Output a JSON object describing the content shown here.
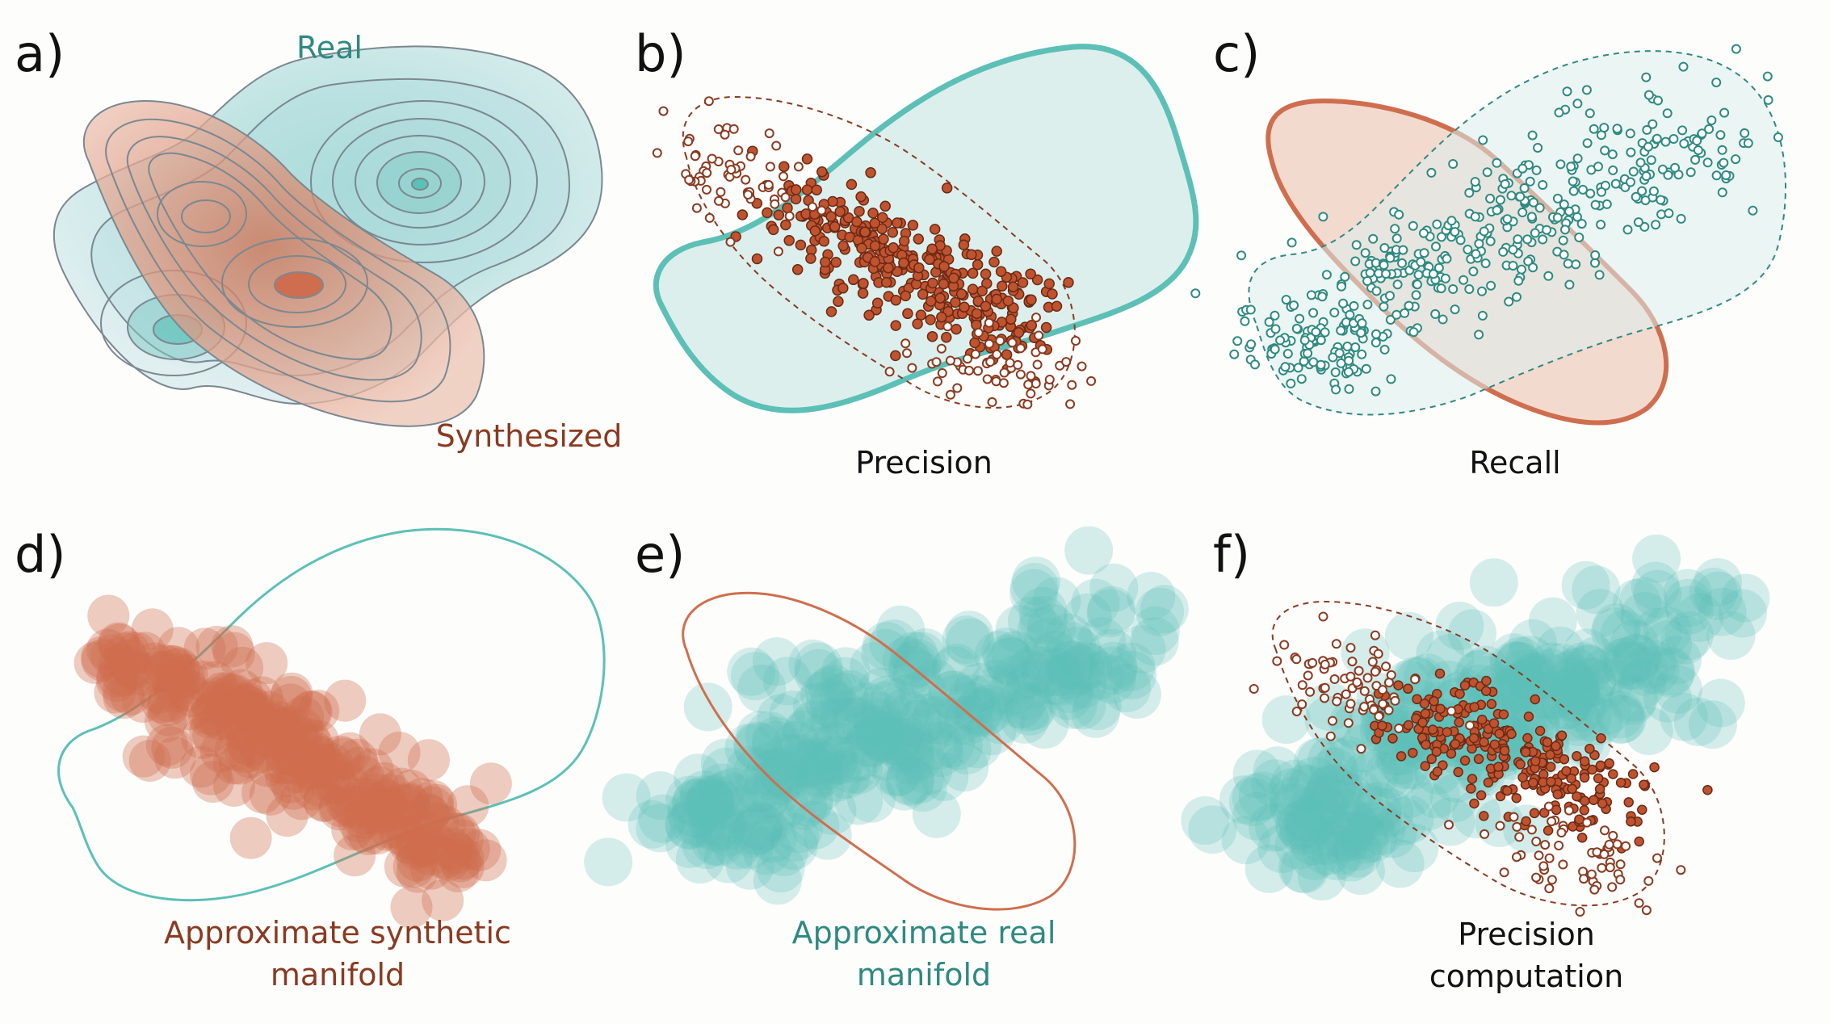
{
  "panels": [
    {
      "letter": "a)"
    },
    {
      "letter": "b)",
      "caption": "Precision"
    },
    {
      "letter": "c)",
      "caption": "Recall"
    },
    {
      "letter": "d)",
      "caption_lines": [
        "Approximate synthetic",
        "manifold"
      ]
    },
    {
      "letter": "e)",
      "caption_lines": [
        "Approximate real",
        "manifold"
      ]
    },
    {
      "letter": "f)",
      "caption_lines": [
        "Precision",
        "computation"
      ]
    }
  ],
  "panel_a": {
    "label_real": "Real",
    "label_synthesized": "Synthesized"
  },
  "colors": {
    "real": "#5cc0b7",
    "real_fill": "#dcefed",
    "real_text": "#2e8a80",
    "synthetic": "#cf6e4e",
    "synthetic_fill": "#f1d3c6",
    "synthetic_text": "#8a3a20",
    "synthetic_point": "#c0532f"
  }
}
